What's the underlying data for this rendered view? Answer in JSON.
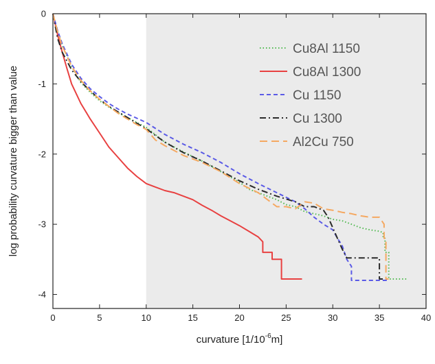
{
  "chart_data": {
    "type": "line",
    "title": "",
    "xlabel": "curvature [1/10",
    "xlabel_sup": "-6",
    "xlabel_unit": "m]",
    "ylabel": "log probability curvature bigger than value",
    "xlim": [
      0,
      40
    ],
    "ylim": [
      -4.2,
      0
    ],
    "x_ticks": [
      0,
      5,
      10,
      15,
      20,
      25,
      30,
      35,
      40
    ],
    "x_tick_labels": [
      "0",
      "5",
      "10",
      "15",
      "20",
      "25",
      "30",
      "35",
      "40"
    ],
    "y_ticks": [
      0,
      -1,
      -2,
      -3,
      -4
    ],
    "y_tick_labels": [
      "0",
      "-1",
      "-2",
      "-3",
      "-4"
    ],
    "shaded_region": {
      "x_from": 10,
      "x_to": 40,
      "color": "#ebebeb"
    },
    "grid": false,
    "legend_position": "top-right",
    "series": [
      {
        "name": "Cu8Al 1150",
        "color": "#4db84d",
        "dash": "dotted",
        "x": [
          0,
          0.5,
          1,
          2,
          3,
          4,
          5,
          6,
          7,
          8,
          9,
          10,
          12,
          14,
          16,
          18,
          20,
          21,
          22,
          23,
          24,
          25,
          26,
          27,
          28,
          29,
          30,
          31,
          32,
          33,
          34,
          35,
          35.4,
          35.4,
          35.6,
          35.6,
          36,
          36,
          38
        ],
        "y": [
          0,
          -0.25,
          -0.45,
          -0.75,
          -0.98,
          -1.12,
          -1.24,
          -1.33,
          -1.41,
          -1.48,
          -1.55,
          -1.62,
          -1.83,
          -1.97,
          -2.1,
          -2.25,
          -2.4,
          -2.5,
          -2.55,
          -2.6,
          -2.65,
          -2.72,
          -2.75,
          -2.82,
          -2.85,
          -2.88,
          -2.93,
          -2.95,
          -3.0,
          -3.05,
          -3.08,
          -3.1,
          -3.12,
          -3.2,
          -3.2,
          -3.4,
          -3.4,
          -3.78,
          -3.78
        ]
      },
      {
        "name": "Cu8Al 1300",
        "color": "#e84040",
        "dash": "solid",
        "x": [
          0,
          0.5,
          1,
          1.5,
          2,
          3,
          4,
          5,
          6,
          7,
          8,
          9,
          10,
          11,
          12,
          13,
          14,
          15,
          16,
          17,
          18,
          19,
          20,
          21,
          22,
          22.5,
          22.5,
          23.5,
          23.5,
          24.5,
          24.5,
          26.7
        ],
        "y": [
          0,
          -0.3,
          -0.55,
          -0.78,
          -1.0,
          -1.28,
          -1.5,
          -1.7,
          -1.9,
          -2.05,
          -2.2,
          -2.32,
          -2.42,
          -2.47,
          -2.52,
          -2.55,
          -2.6,
          -2.65,
          -2.73,
          -2.8,
          -2.88,
          -2.95,
          -3.02,
          -3.1,
          -3.18,
          -3.25,
          -3.4,
          -3.4,
          -3.5,
          -3.5,
          -3.78,
          -3.78
        ]
      },
      {
        "name": "Cu 1150",
        "color": "#5a5ae6",
        "dash": "dashed",
        "x": [
          0,
          0.5,
          1,
          2,
          3,
          4,
          5,
          6,
          7,
          8,
          9,
          10,
          12,
          14,
          16,
          18,
          20,
          22,
          24,
          26,
          27,
          28,
          29,
          30,
          30.5,
          31,
          31.5,
          32,
          32,
          36
        ],
        "y": [
          0,
          -0.24,
          -0.43,
          -0.72,
          -0.92,
          -1.07,
          -1.18,
          -1.28,
          -1.36,
          -1.43,
          -1.49,
          -1.55,
          -1.72,
          -1.86,
          -1.98,
          -2.12,
          -2.28,
          -2.42,
          -2.55,
          -2.68,
          -2.78,
          -2.9,
          -3.0,
          -3.08,
          -3.2,
          -3.3,
          -3.5,
          -3.6,
          -3.8,
          -3.8
        ]
      },
      {
        "name": "Cu 1300",
        "color": "#2a2a2a",
        "dash": "dashdot",
        "x": [
          0,
          0.5,
          1,
          2,
          3,
          4,
          5,
          6,
          7,
          8,
          9,
          10,
          12,
          14,
          16,
          18,
          20,
          22,
          24,
          26,
          27,
          28,
          29,
          29.5,
          30,
          30.5,
          31,
          31.5,
          32,
          35,
          35,
          36
        ],
        "y": [
          0,
          -0.35,
          -0.55,
          -0.8,
          -0.97,
          -1.1,
          -1.22,
          -1.32,
          -1.4,
          -1.48,
          -1.56,
          -1.64,
          -1.83,
          -1.98,
          -2.1,
          -2.24,
          -2.38,
          -2.5,
          -2.6,
          -2.68,
          -2.75,
          -2.75,
          -2.8,
          -2.9,
          -3.05,
          -3.2,
          -3.35,
          -3.48,
          -3.48,
          -3.48,
          -3.78,
          -3.78
        ]
      },
      {
        "name": "Al2Cu 750",
        "color": "#f5a860",
        "dash": "longdash",
        "x": [
          0,
          0.5,
          1,
          2,
          3,
          4,
          5,
          6,
          7,
          8,
          9,
          10,
          11,
          12,
          13,
          14,
          16,
          18,
          20,
          22,
          24,
          25,
          26,
          27,
          28,
          29,
          30,
          31,
          32,
          33,
          34,
          35,
          35.5,
          35.5,
          35.7,
          35.7,
          36
        ],
        "y": [
          0,
          -0.26,
          -0.46,
          -0.75,
          -0.95,
          -1.1,
          -1.22,
          -1.32,
          -1.42,
          -1.5,
          -1.58,
          -1.65,
          -1.8,
          -1.88,
          -1.95,
          -2.02,
          -2.12,
          -2.25,
          -2.42,
          -2.55,
          -2.75,
          -2.75,
          -2.78,
          -2.68,
          -2.7,
          -2.78,
          -2.8,
          -2.83,
          -2.85,
          -2.88,
          -2.9,
          -2.9,
          -3.0,
          -3.2,
          -3.2,
          -3.78,
          -3.78
        ]
      }
    ]
  }
}
